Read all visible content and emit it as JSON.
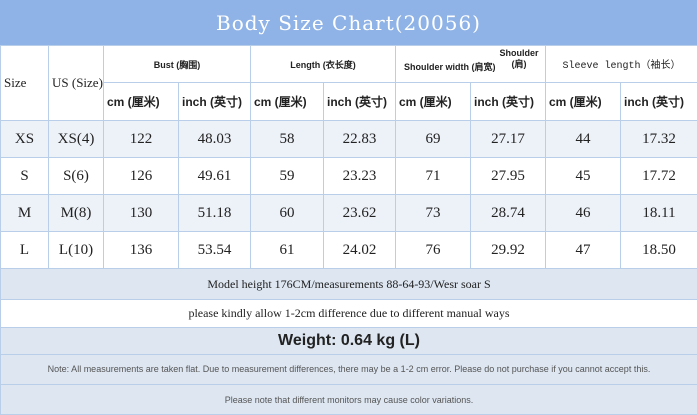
{
  "title": "Body Size Chart(20056)",
  "table": {
    "header": {
      "size": "Size",
      "us": "US (Size)",
      "groups": [
        "Bust (胸围)",
        "Length (衣长度)",
        "Shoulder width (肩宽)",
        "Sleeve length（袖长）"
      ],
      "shoulder_note": "Shoulder (肩)",
      "units": [
        "cm (厘米)",
        "inch (英寸)",
        "cm (厘米)",
        "inch (英寸)",
        "cm (厘米)",
        "inch (英寸)",
        "cm (厘米)",
        "inch (英寸)"
      ]
    },
    "rows": [
      [
        "XS",
        "XS(4)",
        "122",
        "48.03",
        "58",
        "22.83",
        "69",
        "27.17",
        "44",
        "17.32"
      ],
      [
        "S",
        "S(6)",
        "126",
        "49.61",
        "59",
        "23.23",
        "71",
        "27.95",
        "45",
        "17.72"
      ],
      [
        "M",
        "M(8)",
        "130",
        "51.18",
        "60",
        "23.62",
        "73",
        "28.74",
        "46",
        "18.11"
      ],
      [
        "L",
        "L(10)",
        "136",
        "53.54",
        "61",
        "24.02",
        "76",
        "29.92",
        "47",
        "18.50"
      ]
    ]
  },
  "notes": [
    "Model height 176CM/measurements 88-64-93/Wesr soar S",
    "please kindly allow 1-2cm difference due to different manual ways",
    "Weight: 0.64 kg (L)",
    "Note: All measurements are taken flat. Due to measurement differences, there may be a 1-2 cm error. Please do not purchase if you cannot accept this.",
    "Please note that different monitors may cause color variations."
  ]
}
